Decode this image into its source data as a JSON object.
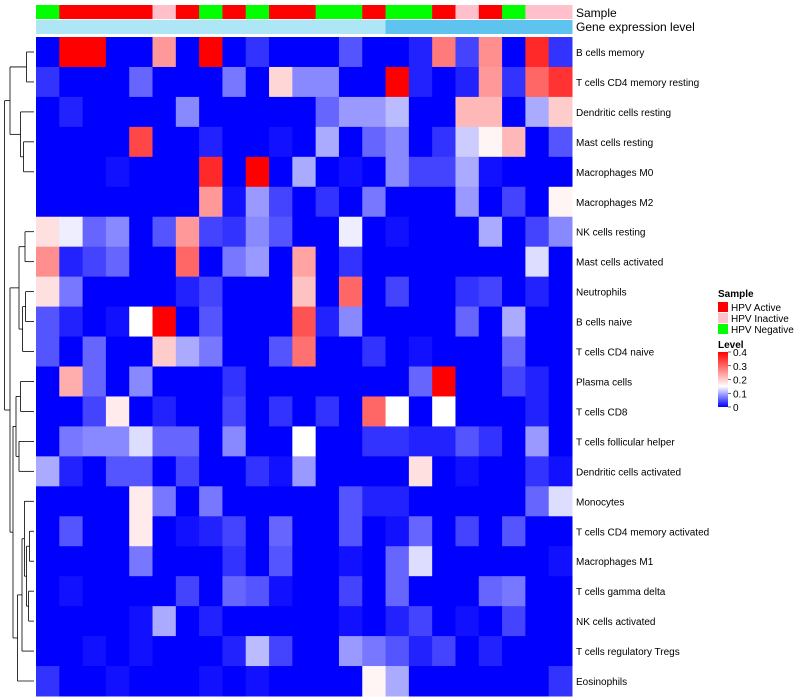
{
  "chart_data": {
    "type": "heatmap",
    "title": "",
    "annotation_rows": [
      "Sample",
      "Gene expression level"
    ],
    "columns": 23,
    "sample_groups": [
      "HPV Negative",
      "HPV Active",
      "HPV Active",
      "HPV Active",
      "HPV Active",
      "HPV Inactive",
      "HPV Active",
      "HPV Negative",
      "HPV Active",
      "HPV Negative",
      "HPV Active",
      "HPV Active",
      "HPV Negative",
      "HPV Negative",
      "HPV Active",
      "HPV Negative",
      "HPV Negative",
      "HPV Active",
      "HPV Inactive",
      "HPV Active",
      "HPV Negative",
      "HPV Inactive",
      "HPV Inactive"
    ],
    "rows": [
      {
        "label": "B cells memory",
        "values": [
          0.0,
          0.4,
          0.4,
          0.0,
          0.0,
          0.25,
          0.0,
          0.4,
          0.0,
          0.03,
          0.0,
          0.0,
          0.0,
          0.05,
          0.0,
          0.0,
          0.02,
          0.28,
          0.04,
          0.26,
          0.0,
          0.36,
          0.03
        ]
      },
      {
        "label": "T cells CD4 memory resting",
        "values": [
          0.03,
          0.0,
          0.0,
          0.0,
          0.06,
          0.0,
          0.0,
          0.0,
          0.07,
          0.0,
          0.19,
          0.08,
          0.08,
          0.0,
          0.0,
          0.4,
          0.02,
          0.0,
          0.02,
          0.25,
          0.03,
          0.3,
          0.35
        ]
      },
      {
        "label": "Dendritic cells resting",
        "values": [
          0.0,
          0.02,
          0.0,
          0.0,
          0.0,
          0.0,
          0.08,
          0.0,
          0.0,
          0.0,
          0.0,
          0.0,
          0.06,
          0.09,
          0.09,
          0.11,
          0.0,
          0.0,
          0.22,
          0.22,
          0.0,
          0.1,
          0.2
        ]
      },
      {
        "label": "Mast cells resting",
        "values": [
          0.0,
          0.0,
          0.0,
          0.0,
          0.33,
          0.0,
          0.0,
          0.02,
          0.0,
          0.0,
          0.01,
          0.0,
          0.1,
          0.0,
          0.06,
          0.08,
          0.0,
          0.03,
          0.12,
          0.16,
          0.22,
          0.0,
          0.05
        ]
      },
      {
        "label": "Macrophages M0",
        "values": [
          0.0,
          0.0,
          0.0,
          0.01,
          0.0,
          0.0,
          0.0,
          0.36,
          0.0,
          0.4,
          0.0,
          0.1,
          0.0,
          0.01,
          0.0,
          0.08,
          0.04,
          0.04,
          0.1,
          0.01,
          0.0,
          0.0,
          0.0
        ]
      },
      {
        "label": "Macrophages M2",
        "values": [
          0.0,
          0.0,
          0.0,
          0.0,
          0.0,
          0.0,
          0.0,
          0.25,
          0.01,
          0.09,
          0.04,
          0.0,
          0.03,
          0.0,
          0.07,
          0.0,
          0.0,
          0.0,
          0.09,
          0.0,
          0.04,
          0.0,
          0.16
        ]
      },
      {
        "label": "NK cells resting",
        "values": [
          0.18,
          0.14,
          0.06,
          0.08,
          0.0,
          0.05,
          0.25,
          0.04,
          0.03,
          0.08,
          0.05,
          0.0,
          0.0,
          0.14,
          0.0,
          0.01,
          0.0,
          0.0,
          0.0,
          0.1,
          0.0,
          0.04,
          0.08
        ]
      },
      {
        "label": "Mast cells activated",
        "values": [
          0.26,
          0.02,
          0.04,
          0.06,
          0.0,
          0.0,
          0.3,
          0.0,
          0.07,
          0.09,
          0.0,
          0.24,
          0.0,
          0.03,
          0.0,
          0.0,
          0.0,
          0.0,
          0.0,
          0.0,
          0.0,
          0.13,
          0.0
        ]
      },
      {
        "label": "Neutrophils",
        "values": [
          0.18,
          0.07,
          0.0,
          0.0,
          0.0,
          0.0,
          0.02,
          0.04,
          0.0,
          0.0,
          0.0,
          0.21,
          0.0,
          0.3,
          0.0,
          0.04,
          0.0,
          0.0,
          0.03,
          0.04,
          0.0,
          0.02,
          0.0
        ]
      },
      {
        "label": "B cells naive",
        "values": [
          0.05,
          0.02,
          0.0,
          0.01,
          0.15,
          0.4,
          0.0,
          0.05,
          0.0,
          0.0,
          0.0,
          0.32,
          0.02,
          0.08,
          0.0,
          0.0,
          0.0,
          0.0,
          0.06,
          0.0,
          0.1,
          0.0,
          0.0
        ]
      },
      {
        "label": "T cells CD4 naive",
        "values": [
          0.05,
          0.0,
          0.06,
          0.0,
          0.0,
          0.2,
          0.1,
          0.07,
          0.0,
          0.0,
          0.05,
          0.29,
          0.0,
          0.0,
          0.03,
          0.0,
          0.01,
          0.0,
          0.0,
          0.0,
          0.06,
          0.0,
          0.0
        ]
      },
      {
        "label": "Plasma cells",
        "values": [
          0.0,
          0.23,
          0.06,
          0.0,
          0.08,
          0.0,
          0.0,
          0.0,
          0.03,
          0.0,
          0.0,
          0.0,
          0.0,
          0.0,
          0.0,
          0.0,
          0.06,
          0.4,
          0.0,
          0.0,
          0.04,
          0.02,
          0.0
        ]
      },
      {
        "label": "T cells CD8",
        "values": [
          0.0,
          0.0,
          0.04,
          0.17,
          0.0,
          0.02,
          0.0,
          0.0,
          0.04,
          0.0,
          0.03,
          0.0,
          0.03,
          0.0,
          0.3,
          0.15,
          0.0,
          0.15,
          0.0,
          0.0,
          0.0,
          0.02,
          0.0
        ]
      },
      {
        "label": "T cells follicular helper",
        "values": [
          0.0,
          0.07,
          0.08,
          0.08,
          0.13,
          0.06,
          0.06,
          0.0,
          0.08,
          0.0,
          0.0,
          0.15,
          0.0,
          0.0,
          0.03,
          0.03,
          0.02,
          0.02,
          0.05,
          0.03,
          0.0,
          0.09,
          0.0
        ]
      },
      {
        "label": "Dendritic cells activated",
        "values": [
          0.1,
          0.02,
          0.0,
          0.05,
          0.05,
          0.0,
          0.04,
          0.0,
          0.0,
          0.03,
          0.01,
          0.09,
          0.0,
          0.0,
          0.0,
          0.0,
          0.18,
          0.0,
          0.01,
          0.0,
          0.0,
          0.03,
          0.01
        ]
      },
      {
        "label": "Monocytes",
        "values": [
          0.0,
          0.0,
          0.0,
          0.0,
          0.17,
          0.07,
          0.0,
          0.07,
          0.0,
          0.0,
          0.0,
          0.0,
          0.0,
          0.05,
          0.02,
          0.02,
          0.0,
          0.0,
          0.0,
          0.0,
          0.0,
          0.06,
          0.13
        ]
      },
      {
        "label": "T cells CD4 memory activated",
        "values": [
          0.0,
          0.05,
          0.0,
          0.0,
          0.17,
          0.0,
          0.01,
          0.02,
          0.04,
          0.0,
          0.06,
          0.0,
          0.0,
          0.05,
          0.0,
          0.01,
          0.06,
          0.0,
          0.04,
          0.0,
          0.05,
          0.0,
          0.0
        ]
      },
      {
        "label": "Macrophages M1",
        "values": [
          0.0,
          0.0,
          0.0,
          0.0,
          0.07,
          0.0,
          0.0,
          0.0,
          0.03,
          0.0,
          0.05,
          0.0,
          0.0,
          0.01,
          0.0,
          0.06,
          0.13,
          0.0,
          0.0,
          0.0,
          0.0,
          0.0,
          0.01
        ]
      },
      {
        "label": "T cells gamma delta",
        "values": [
          0.0,
          0.01,
          0.0,
          0.0,
          0.0,
          0.0,
          0.04,
          0.0,
          0.06,
          0.05,
          0.01,
          0.0,
          0.0,
          0.04,
          0.0,
          0.06,
          0.0,
          0.0,
          0.0,
          0.06,
          0.07,
          0.0,
          0.0
        ]
      },
      {
        "label": "NK cells activated",
        "values": [
          0.0,
          0.0,
          0.0,
          0.0,
          0.01,
          0.1,
          0.0,
          0.02,
          0.0,
          0.0,
          0.0,
          0.0,
          0.0,
          0.01,
          0.0,
          0.02,
          0.04,
          0.0,
          0.01,
          0.0,
          0.04,
          0.0,
          0.0
        ]
      },
      {
        "label": "T cells regulatory  Tregs",
        "values": [
          0.0,
          0.0,
          0.01,
          0.0,
          0.01,
          0.0,
          0.0,
          0.0,
          0.02,
          0.11,
          0.04,
          0.0,
          0.0,
          0.09,
          0.07,
          0.05,
          0.02,
          0.04,
          0.0,
          0.02,
          0.0,
          0.0,
          0.0
        ]
      },
      {
        "label": "Eosinophils",
        "values": [
          0.03,
          0.0,
          0.0,
          0.01,
          0.0,
          0.0,
          0.0,
          0.01,
          0.0,
          0.01,
          0.0,
          0.0,
          0.0,
          0.0,
          0.16,
          0.1,
          0.0,
          0.0,
          0.0,
          0.0,
          0.0,
          0.0,
          0.03
        ]
      }
    ],
    "legend": {
      "sample_title": "Sample",
      "sample_entries": [
        {
          "label": "HPV Active",
          "color": "#ff0000"
        },
        {
          "label": "HPV Inactive",
          "color": "#ffc0cb"
        },
        {
          "label": "HPV Negative",
          "color": "#00ff00"
        }
      ],
      "level_title": "Level",
      "level_range": [
        0,
        0.4
      ],
      "level_ticks": [
        "0.4",
        "0.3",
        "0.2",
        "0.1",
        "0"
      ],
      "level_tick_values": [
        0.4,
        0.3,
        0.2,
        0.1,
        0
      ],
      "placement": "right"
    },
    "gene_expression_colors": [
      "#aee6f5",
      "#5ec3ee"
    ],
    "colormap": {
      "low": "#0000ff",
      "mid": "#ffffff",
      "high": "#ff0000",
      "midpoint": 0.15
    }
  }
}
